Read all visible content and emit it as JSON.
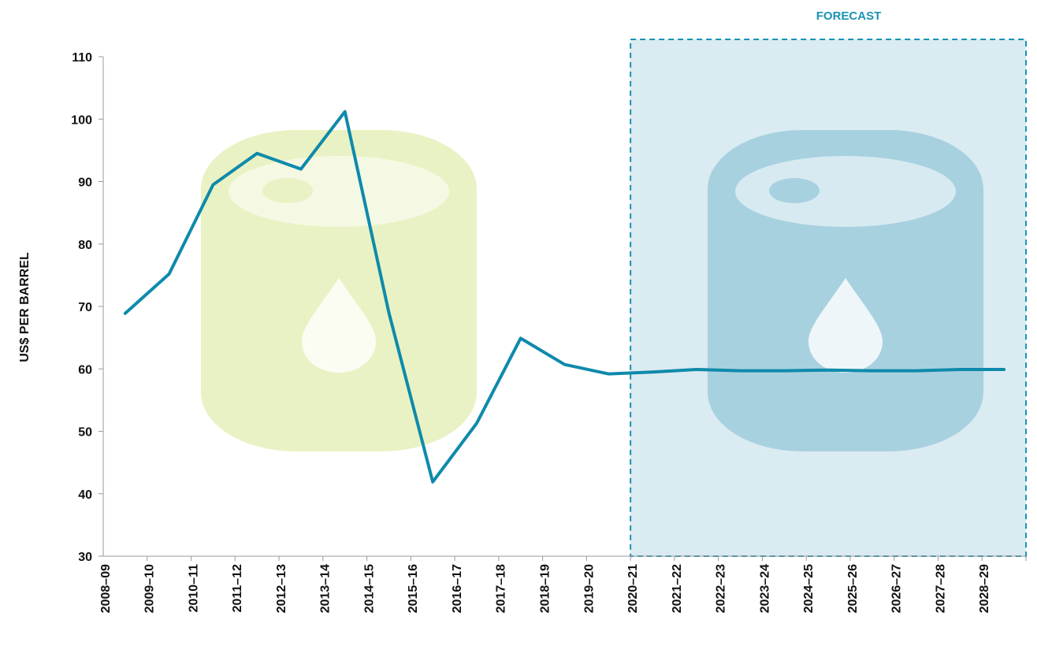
{
  "chart_data": {
    "type": "line",
    "y_axis_label": "US$ PER BARREL",
    "forecast_label": "FORECAST",
    "categories": [
      "2008–09",
      "2009–10",
      "2010–11",
      "2011–12",
      "2012–13",
      "2013–14",
      "2014–15",
      "2015–16",
      "2016–17",
      "2017–18",
      "2018–19",
      "2019–20",
      "2020–21",
      "2021–22",
      "2022–23",
      "2023–24",
      "2024–25",
      "2025–26",
      "2026–27",
      "2027–28",
      "2028–29"
    ],
    "series": [
      {
        "color": "#0e8aab",
        "values": [
          68.9,
          75.2,
          89.5,
          94.5,
          92,
          101.2,
          69,
          41.9,
          51.3,
          64.9,
          60.7,
          59.2,
          59.5,
          59.9,
          59.7,
          59.7,
          59.8,
          59.7,
          59.7,
          59.9,
          59.9
        ]
      }
    ],
    "ylim": [
      30,
      110
    ],
    "yticks": [
      30,
      40,
      50,
      60,
      70,
      80,
      90,
      100,
      110
    ]
  }
}
